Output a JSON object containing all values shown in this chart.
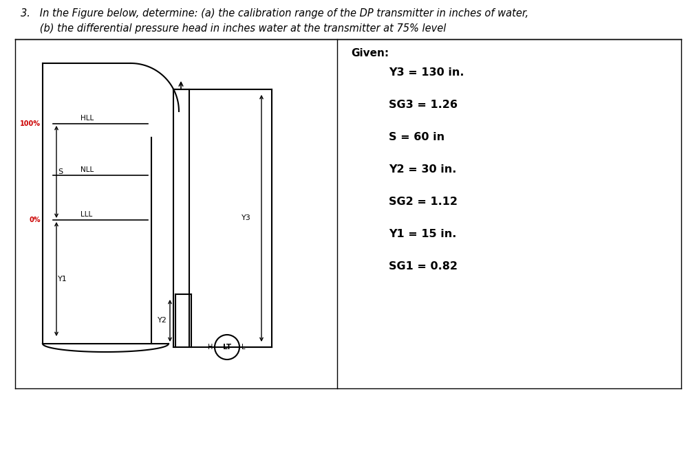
{
  "title_line1": "3.   In the Figure below, determine: (a) the calibration range of the DP transmitter in inches of water,",
  "title_line2": "      (b) the differential pressure head in inches water at the transmitter at 75% level",
  "given_title": "Given:",
  "given_items": [
    "Y3 = 130 in.",
    "SG3 = 1.26",
    "S = 60 in",
    "Y2 = 30 in.",
    "SG2 = 1.12",
    "Y1 = 15 in.",
    "SG1 = 0.82"
  ],
  "label_100pct": "100%",
  "label_0pct": "0%",
  "label_s": "S",
  "label_HLL": "HLL",
  "label_NLL": "NLL",
  "label_LLL": "LLL",
  "label_Y1": "Y1",
  "label_Y2": "Y2",
  "label_Y3": "Y3",
  "label_LT": "LT",
  "label_H": "H",
  "label_L": "L",
  "bg_color": "#ffffff",
  "line_color": "#000000",
  "red_color": "#cc0000",
  "lw_main": 1.5,
  "lw_thin": 1.0
}
